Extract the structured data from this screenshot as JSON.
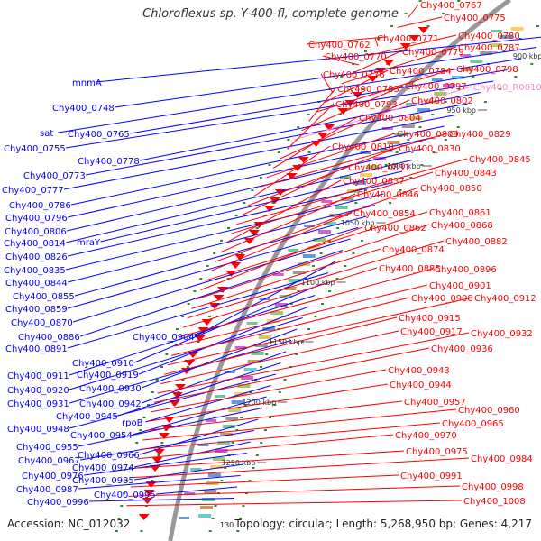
{
  "title": "Chloroflexus sp. Y-400-fl, complete genome",
  "accession_text": "Accession: NC_012032",
  "summary_text": "Topology: circular; Length: 5,268,950 bp; Genes: 4,217",
  "bottom_kbp_fragment": "130",
  "colors": {
    "forward_strand": "#ff0000",
    "reverse_strand": "#0000ff",
    "rna_label": "#ff88cc",
    "backbone": "#999999"
  },
  "kbp_ticks": [
    "900 kbp",
    "950 kbp",
    "1000 kbp",
    "1050 kbp",
    "1100 kbp",
    "1150 kbp",
    "1200 kbp",
    "1250 kbp"
  ],
  "left_labels": [
    "mnmA",
    "Chy400_0748",
    "sat",
    "Chy400_0765",
    "Chy400_0755",
    "Chy400_0778",
    "Chy400_0773",
    "Chy400_0777",
    "Chy400_0786",
    "Chy400_0796",
    "Chy400_0806",
    "Chy400_0814",
    "mraY",
    "Chy400_0826",
    "Chy400_0835",
    "Chy400_0844",
    "Chy400_0855",
    "Chy400_0859",
    "Chy400_0870",
    "Chy400_0886",
    "Chy400_0904",
    "Chy400_0891",
    "Chy400_0910",
    "Chy400_0911",
    "Chy400_0919",
    "Chy400_0920",
    "Chy400_0930",
    "Chy400_0931",
    "Chy400_0942",
    "Chy400_0945",
    "Chy400_0948",
    "rpoB",
    "Chy400_0954",
    "Chy400_0955",
    "Chy400_0966",
    "Chy400_0967",
    "Chy400_0974",
    "Chy400_0976",
    "Chy400_0985",
    "Chy400_0987",
    "Chy400_0995",
    "Chy400_0996"
  ],
  "right_labels": [
    "Chy400_0767",
    "Chy400_0775",
    "Chy400_0762",
    "Chy400_0771",
    "Chy400_0780",
    "Chy400_0770",
    "Chy400_0779",
    "Chy400_0787",
    "Chy400_0776",
    "Chy400_0784",
    "Chy400_0798",
    "Chy400_0783",
    "Chy400_0797",
    "Chy400_R0010",
    "Chy400_0793",
    "Chy400_0802",
    "Chy400_0804",
    "Chy400_0809",
    "Chy400_0829",
    "Chy400_0810",
    "Chy400_0830",
    "Chy400_0831",
    "Chy400_0845",
    "Chy400_0843",
    "Chy400_0837",
    "Chy400_0846",
    "Chy400_0850",
    "Chy400_0854",
    "Chy400_0861",
    "Chy400_0862",
    "Chy400_0868",
    "Chy400_0874",
    "Chy400_0882",
    "Chy400_0885",
    "Chy400_0896",
    "Chy400_0901",
    "Chy400_0908",
    "Chy400_0912",
    "Chy400_0915",
    "Chy400_0917",
    "Chy400_0932",
    "Chy400_0936",
    "Chy400_0943",
    "Chy400_0944",
    "Chy400_0957",
    "Chy400_0960",
    "Chy400_0965",
    "Chy400_0970",
    "Chy400_0975",
    "Chy400_0984",
    "Chy400_0991",
    "Chy400_0998",
    "Chy400_1008"
  ]
}
